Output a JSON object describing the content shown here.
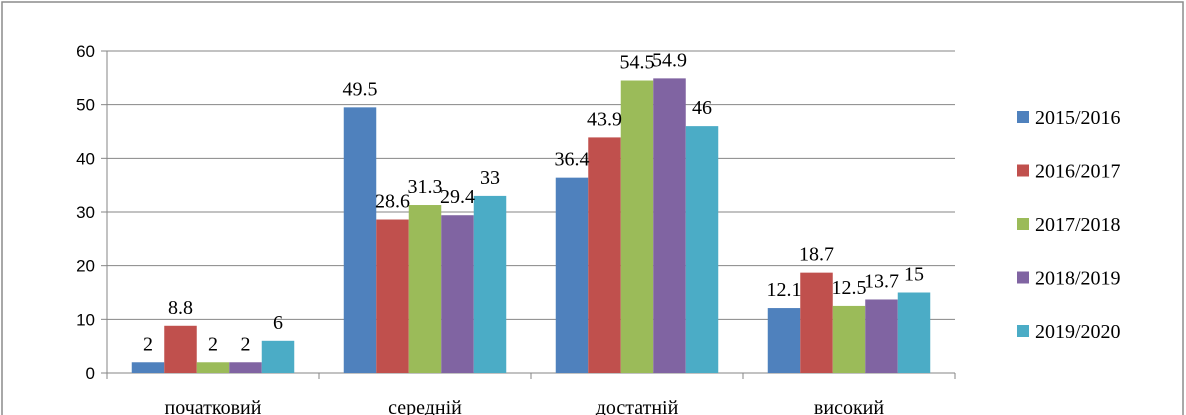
{
  "chart_data": {
    "type": "bar",
    "categories": [
      "початковий",
      "середній",
      "достатній",
      "високий"
    ],
    "series": [
      {
        "name": "2015/2016",
        "color": "#4F81BD",
        "values": [
          2,
          49.5,
          36.4,
          12.1
        ]
      },
      {
        "name": "2016/2017",
        "color": "#C0504D",
        "values": [
          8.8,
          28.6,
          43.9,
          18.7
        ]
      },
      {
        "name": "2017/2018",
        "color": "#9BBB59",
        "values": [
          2,
          31.3,
          54.5,
          12.5
        ]
      },
      {
        "name": "2018/2019",
        "color": "#8064A2",
        "values": [
          2,
          29.4,
          54.9,
          13.7
        ]
      },
      {
        "name": "2019/2020",
        "color": "#4BACC6",
        "values": [
          6,
          33,
          46,
          15
        ]
      }
    ],
    "ylim": [
      0,
      60
    ],
    "yticks": [
      0,
      10,
      20,
      30,
      40,
      50,
      60
    ],
    "grid": true,
    "legend_position": "right"
  }
}
